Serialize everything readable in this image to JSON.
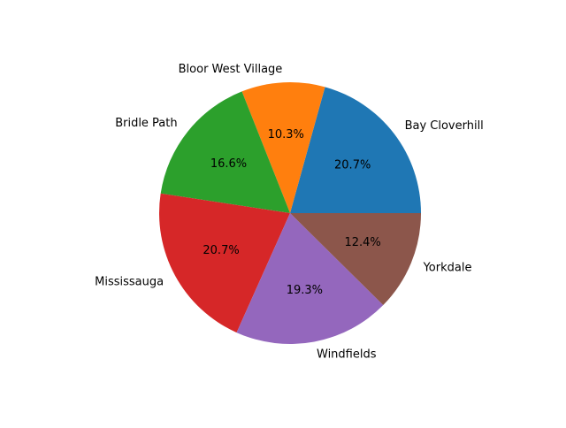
{
  "chart_data": {
    "type": "pie",
    "title": "",
    "labels": [
      "Bay Cloverhill",
      "Bloor West Village",
      "Bridle Path",
      "Mississauga",
      "Windfields",
      "Yorkdale"
    ],
    "values": [
      20.7,
      10.3,
      16.6,
      20.7,
      19.3,
      12.4
    ],
    "value_labels": [
      "20.7%",
      "10.3%",
      "16.6%",
      "20.7%",
      "19.3%",
      "12.4%"
    ],
    "colors": [
      "#1f77b4",
      "#ff7f0e",
      "#2ca02c",
      "#d62728",
      "#9467bd",
      "#8c564b"
    ],
    "start_angle_deg": 0,
    "direction": "counterclockwise",
    "legend": "none"
  }
}
